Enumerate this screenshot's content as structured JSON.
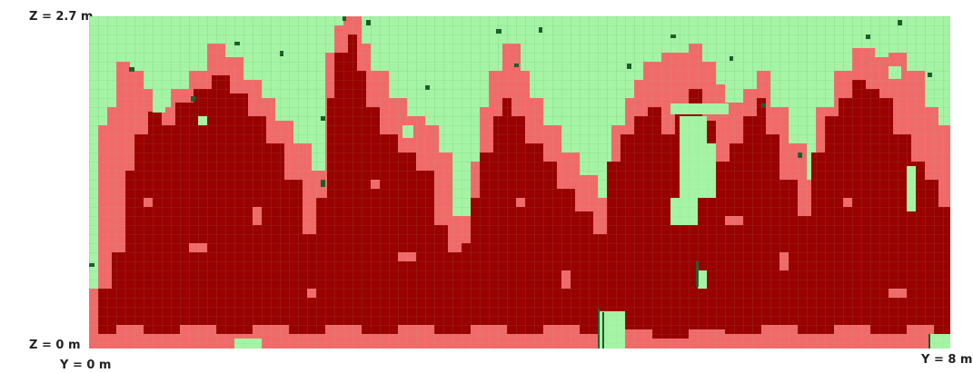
{
  "labels": {
    "z_top": "Z = 2.7 m",
    "z_bottom": "Z = 0 m",
    "y_start": "Y = 0 m",
    "y_end": "Y = 8 m"
  },
  "colors": {
    "empty_cell": "#a5f3a5",
    "grid_line": "#7fd48a",
    "occupied_light": "#f16a6a",
    "occupied_dark": "#990000",
    "vegetation_green": "#1d5c2a"
  },
  "legend_visible": false
}
